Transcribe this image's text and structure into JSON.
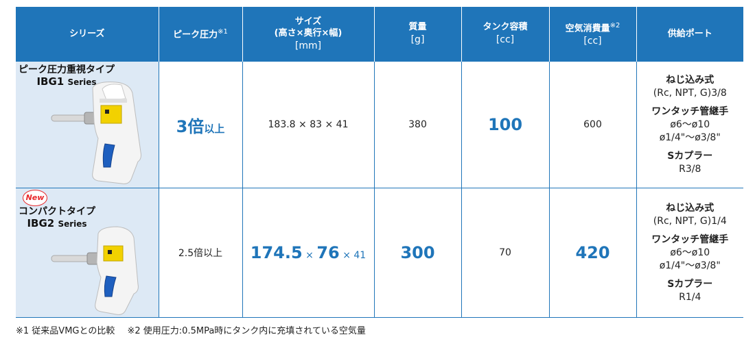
{
  "header": {
    "col_series": "シリーズ",
    "col_peak": "ピーク圧力",
    "col_peak_note": "※1",
    "col_size": "サイズ",
    "col_size_sub": "(高さ×奥行×幅)",
    "col_size_unit": "[mm]",
    "col_mass": "質量",
    "col_mass_unit": "[g]",
    "col_tank": "タンク容積",
    "col_tank_unit": "[cc]",
    "col_air": "空気消費量",
    "col_air_note": "※2",
    "col_air_unit": "[cc]",
    "col_port": "供給ポート"
  },
  "rows": [
    {
      "badge": "",
      "name": "ピーク圧力重視タイプ",
      "code": "IBG1",
      "code_suffix": "Series",
      "peak_big": "3倍",
      "peak_small": "以上",
      "size_plain": "183.8 × 83 × 41",
      "mass": "380",
      "tank": "100",
      "air": "600",
      "port": {
        "screw_title": "ねじ込み式",
        "screw_value": "(Rc, NPT, G)3/8",
        "touch_title": "ワンタッチ管継手",
        "touch_value1": "ø6〜ø10",
        "touch_value2": "ø1/4\"〜ø3/8\"",
        "coupler_title": "Sカプラー",
        "coupler_value": "R3/8"
      }
    },
    {
      "badge": "New",
      "name": "コンパクトタイプ",
      "code": "IBG2",
      "code_suffix": "Series",
      "peak": "2.5倍以上",
      "size_a": "174.5",
      "size_x1": "×",
      "size_b": "76",
      "size_c": "× 41",
      "mass": "300",
      "tank": "70",
      "air": "420",
      "port": {
        "screw_title": "ねじ込み式",
        "screw_value": "(Rc, NPT, G)1/4",
        "touch_title": "ワンタッチ管継手",
        "touch_value1": "ø6〜ø10",
        "touch_value2": "ø1/4\"〜ø3/8\"",
        "coupler_title": "Sカプラー",
        "coupler_value": "R1/4"
      }
    }
  ],
  "footnotes": [
    "※1 従来品VMGとの比較",
    "※2 使用圧力:0.5MPa時にタンク内に充填されている空気量"
  ],
  "colors": {
    "header_bg": "#1f75b9",
    "series_bg": "#dde9f5",
    "accent": "#1f75b9",
    "new_badge": "#e8282b"
  }
}
